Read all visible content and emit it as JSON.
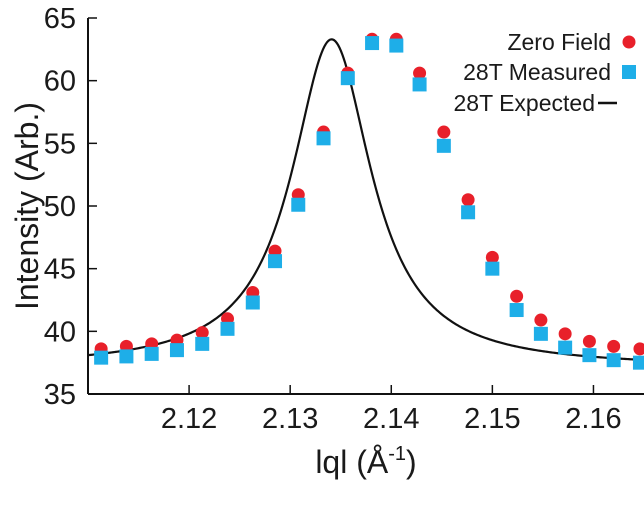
{
  "chart_data": {
    "type": "scatter",
    "title": "",
    "xlabel": "|q| (Å⁻¹)",
    "xlabel_parts": {
      "main": "lql (",
      "unit": "Å",
      "exp": "-1",
      "close": ")"
    },
    "ylabel": "Intensity (Arb.)",
    "xlim": [
      2.11,
      2.165
    ],
    "ylim": [
      35,
      65
    ],
    "xticks": [
      2.12,
      2.13,
      2.14,
      2.15,
      2.16
    ],
    "xtick_labels": [
      "2.12",
      "2.13",
      "2.14",
      "2.15",
      "2.16"
    ],
    "yticks": [
      35,
      40,
      45,
      50,
      55,
      60,
      65
    ],
    "ytick_labels": [
      "35",
      "40",
      "45",
      "50",
      "55",
      "60",
      "65"
    ],
    "grid": false,
    "legend_position": "top-right",
    "series": [
      {
        "name": "Zero Field",
        "marker": "circle",
        "color": "#e8202a",
        "x": [
          2.1113,
          2.1138,
          2.1163,
          2.1188,
          2.1213,
          2.1238,
          2.1263,
          2.1285,
          2.1308,
          2.1333,
          2.1357,
          2.1381,
          2.1405,
          2.1428,
          2.1452,
          2.1476,
          2.15,
          2.1524,
          2.1548,
          2.1572,
          2.1596,
          2.162,
          2.1646
        ],
        "y": [
          38.6,
          38.8,
          39.0,
          39.3,
          39.9,
          41.0,
          43.1,
          46.4,
          50.9,
          55.9,
          60.6,
          63.3,
          63.3,
          60.6,
          55.9,
          50.5,
          45.9,
          42.8,
          40.9,
          39.8,
          39.2,
          38.8,
          38.6
        ]
      },
      {
        "name": "28T Measured",
        "marker": "square",
        "color": "#1eaee8",
        "x": [
          2.1113,
          2.1138,
          2.1163,
          2.1188,
          2.1213,
          2.1238,
          2.1263,
          2.1285,
          2.1308,
          2.1333,
          2.1357,
          2.1381,
          2.1405,
          2.1428,
          2.1452,
          2.1476,
          2.15,
          2.1524,
          2.1548,
          2.1572,
          2.1596,
          2.162,
          2.1646
        ],
        "y": [
          37.9,
          38.0,
          38.2,
          38.5,
          39.0,
          40.2,
          42.3,
          45.6,
          50.1,
          55.4,
          60.2,
          63.0,
          62.8,
          59.7,
          54.8,
          49.5,
          45.0,
          41.7,
          39.8,
          38.7,
          38.1,
          37.7,
          37.5
        ]
      },
      {
        "name": "28T Expected",
        "marker": "line",
        "color": "#111111",
        "model": {
          "shape": "lorentzian",
          "center": 2.1341,
          "amplitude": 26.2,
          "baseline": 37.1,
          "hwhm": 0.0048
        }
      }
    ]
  }
}
